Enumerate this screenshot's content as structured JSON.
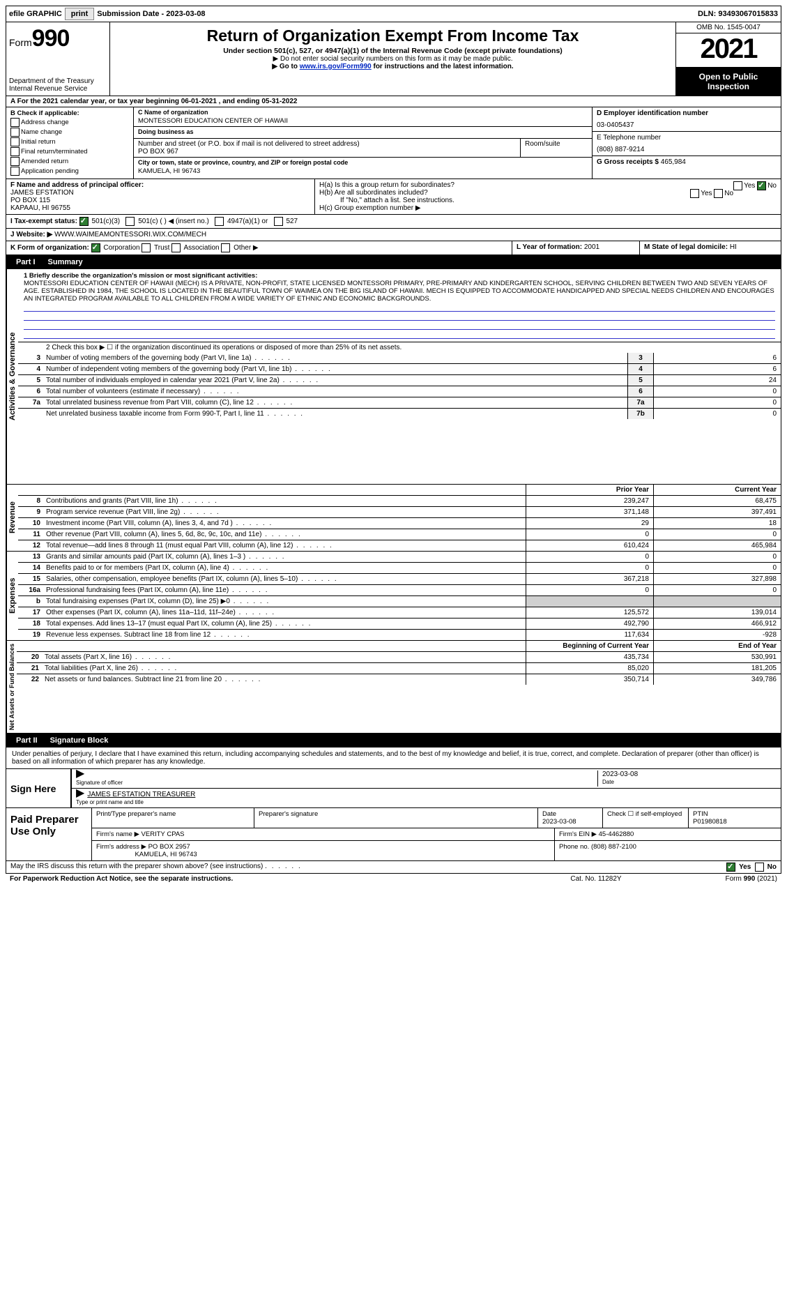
{
  "topbar": {
    "efile": "efile GRAPHIC",
    "print": "print",
    "sub_label": "Submission Date - ",
    "sub_date": "2023-03-08",
    "dln": "DLN: 93493067015833"
  },
  "header": {
    "form_prefix": "Form",
    "form_num": "990",
    "dept": "Department of the Treasury",
    "irs": "Internal Revenue Service",
    "title": "Return of Organization Exempt From Income Tax",
    "sub1": "Under section 501(c), 527, or 4947(a)(1) of the Internal Revenue Code (except private foundations)",
    "sub2a": "▶ Do not enter social security numbers on this form as it may be made public.",
    "sub2b_pre": "▶ Go to ",
    "sub2b_link": "www.irs.gov/Form990",
    "sub2b_post": " for instructions and the latest information.",
    "omb": "OMB No. 1545-0047",
    "year": "2021",
    "open": "Open to Public Inspection"
  },
  "A": {
    "line": "A For the 2021 calendar year, or tax year beginning 06-01-2021   , and ending 05-31-2022"
  },
  "B": {
    "hdr": "B Check if applicable:",
    "opts": [
      "Address change",
      "Name change",
      "Initial return",
      "Final return/terminated",
      "Amended return",
      "Application pending"
    ]
  },
  "C": {
    "name_lab": "C Name of organization",
    "name": "MONTESSORI EDUCATION CENTER OF HAWAII",
    "dba_lab": "Doing business as",
    "dba": "",
    "addr_lab": "Number and street (or P.O. box if mail is not delivered to street address)",
    "room_lab": "Room/suite",
    "addr": "PO BOX 967",
    "city_lab": "City or town, state or province, country, and ZIP or foreign postal code",
    "city": "KAMUELA, HI  96743"
  },
  "D": {
    "lab": "D Employer identification number",
    "val": "03-0405437"
  },
  "E": {
    "lab": "E Telephone number",
    "val": "(808) 887-9214"
  },
  "G": {
    "lab": "G Gross receipts $",
    "val": "465,984"
  },
  "F": {
    "lab": "F  Name and address of principal officer:",
    "name": "JAMES EFSTATION",
    "addr1": "PO BOX 115",
    "addr2": "KAPAAU, HI  96755"
  },
  "H": {
    "a": "H(a)  Is this a group return for subordinates?",
    "b": "H(b)  Are all subordinates included?",
    "b2": "If \"No,\" attach a list. See instructions.",
    "c": "H(c)  Group exemption number ▶",
    "yes": "Yes",
    "no": "No"
  },
  "I": {
    "lab": "I   Tax-exempt status:",
    "o1": "501(c)(3)",
    "o2": "501(c) (  ) ◀ (insert no.)",
    "o3": "4947(a)(1) or",
    "o4": "527"
  },
  "J": {
    "lab": "J   Website: ▶",
    "val": "WWW.WAIMEAMONTESSORI.WIX.COM/MECH"
  },
  "K": {
    "lab": "K Form of organization:",
    "o1": "Corporation",
    "o2": "Trust",
    "o3": "Association",
    "o4": "Other ▶"
  },
  "L": {
    "lab": "L Year of formation:",
    "val": "2001"
  },
  "M": {
    "lab": "M State of legal domicile:",
    "val": "HI"
  },
  "part1": {
    "vlabels": [
      "Activities & Governance",
      "Revenue",
      "Expenses",
      "Net Assets or Fund Balances"
    ],
    "mission_lab": "1   Briefly describe the organization's mission or most significant activities:",
    "mission": "MONTESSORI EDUCATION CENTER OF HAWAII (MECH) IS A PRIVATE, NON-PROFIT, STATE LICENSED MONTESSORI PRIMARY, PRE-PRIMARY AND KINDERGARTEN SCHOOL, SERVING CHILDREN BETWEEN TWO AND SEVEN YEARS OF AGE. ESTABLISHED IN 1984, THE SCHOOL IS LOCATED IN THE BEAUTIFUL TOWN OF WAIMEA ON THE BIG ISLAND OF HAWAII. MECH IS EQUIPPED TO ACCOMMODATE HANDICAPPED AND SPECIAL NEEDS CHILDREN AND ENCOURAGES AN INTEGRATED PROGRAM AVAILABLE TO ALL CHILDREN FROM A WIDE VARIETY OF ETHNIC AND ECONOMIC BACKGROUNDS.",
    "l2": "2   Check this box ▶ ☐ if the organization discontinued its operations or disposed of more than 25% of its net assets.",
    "rows_gov": [
      {
        "n": "3",
        "d": "Number of voting members of the governing body (Part VI, line 1a)",
        "b": "3",
        "v": "6"
      },
      {
        "n": "4",
        "d": "Number of independent voting members of the governing body (Part VI, line 1b)",
        "b": "4",
        "v": "6"
      },
      {
        "n": "5",
        "d": "Total number of individuals employed in calendar year 2021 (Part V, line 2a)",
        "b": "5",
        "v": "24"
      },
      {
        "n": "6",
        "d": "Total number of volunteers (estimate if necessary)",
        "b": "6",
        "v": "0"
      },
      {
        "n": "7a",
        "d": "Total unrelated business revenue from Part VIII, column (C), line 12",
        "b": "7a",
        "v": "0"
      },
      {
        "n": "",
        "d": "Net unrelated business taxable income from Form 990-T, Part I, line 11",
        "b": "7b",
        "v": "0"
      }
    ],
    "col_hdr_prior": "Prior Year",
    "col_hdr_curr": "Current Year",
    "rows_rev": [
      {
        "n": "8",
        "d": "Contributions and grants (Part VIII, line 1h)",
        "p": "239,247",
        "c": "68,475"
      },
      {
        "n": "9",
        "d": "Program service revenue (Part VIII, line 2g)",
        "p": "371,148",
        "c": "397,491"
      },
      {
        "n": "10",
        "d": "Investment income (Part VIII, column (A), lines 3, 4, and 7d )",
        "p": "29",
        "c": "18"
      },
      {
        "n": "11",
        "d": "Other revenue (Part VIII, column (A), lines 5, 6d, 8c, 9c, 10c, and 11e)",
        "p": "0",
        "c": "0"
      },
      {
        "n": "12",
        "d": "Total revenue—add lines 8 through 11 (must equal Part VIII, column (A), line 12)",
        "p": "610,424",
        "c": "465,984"
      }
    ],
    "rows_exp": [
      {
        "n": "13",
        "d": "Grants and similar amounts paid (Part IX, column (A), lines 1–3 )",
        "p": "0",
        "c": "0"
      },
      {
        "n": "14",
        "d": "Benefits paid to or for members (Part IX, column (A), line 4)",
        "p": "0",
        "c": "0"
      },
      {
        "n": "15",
        "d": "Salaries, other compensation, employee benefits (Part IX, column (A), lines 5–10)",
        "p": "367,218",
        "c": "327,898"
      },
      {
        "n": "16a",
        "d": "Professional fundraising fees (Part IX, column (A), line 11e)",
        "p": "0",
        "c": "0"
      },
      {
        "n": "b",
        "d": "Total fundraising expenses (Part IX, column (D), line 25) ▶0",
        "p": "",
        "c": "",
        "shaded": true
      },
      {
        "n": "17",
        "d": "Other expenses (Part IX, column (A), lines 11a–11d, 11f–24e)",
        "p": "125,572",
        "c": "139,014"
      },
      {
        "n": "18",
        "d": "Total expenses. Add lines 13–17 (must equal Part IX, column (A), line 25)",
        "p": "492,790",
        "c": "466,912"
      },
      {
        "n": "19",
        "d": "Revenue less expenses. Subtract line 18 from line 12",
        "p": "117,634",
        "c": "-928"
      }
    ],
    "col_hdr_beg": "Beginning of Current Year",
    "col_hdr_end": "End of Year",
    "rows_net": [
      {
        "n": "20",
        "d": "Total assets (Part X, line 16)",
        "p": "435,734",
        "c": "530,991"
      },
      {
        "n": "21",
        "d": "Total liabilities (Part X, line 26)",
        "p": "85,020",
        "c": "181,205"
      },
      {
        "n": "22",
        "d": "Net assets or fund balances. Subtract line 21 from line 20",
        "p": "350,714",
        "c": "349,786"
      }
    ]
  },
  "part2": {
    "title": "Signature Block",
    "decl": "Under penalties of perjury, I declare that I have examined this return, including accompanying schedules and statements, and to the best of my knowledge and belief, it is true, correct, and complete. Declaration of preparer (other than officer) is based on all information of which preparer has any knowledge.",
    "sign_here": "Sign Here",
    "sig_of_officer": "Signature of officer",
    "sig_date": "2023-03-08",
    "date_lab": "Date",
    "officer_name": "JAMES EFSTATION  TREASURER",
    "officer_type": "Type or print name and title",
    "paid": "Paid Preparer Use Only",
    "prep_name_lab": "Print/Type preparer's name",
    "prep_sig_lab": "Preparer's signature",
    "prep_date": "2023-03-08",
    "check_self": "Check ☐ if self-employed",
    "ptin_lab": "PTIN",
    "ptin": "P01980818",
    "firm_name_lab": "Firm's name    ▶",
    "firm_name": "VERITY CPAS",
    "firm_ein_lab": "Firm's EIN ▶",
    "firm_ein": "45-4462880",
    "firm_addr_lab": "Firm's address ▶",
    "firm_addr1": "PO BOX 2957",
    "firm_addr2": "KAMUELA, HI  96743",
    "phone_lab": "Phone no.",
    "phone": "(808) 887-2100"
  },
  "footer": {
    "discuss": "May the IRS discuss this return with the preparer shown above? (see instructions)",
    "yes": "Yes",
    "no": "No",
    "pwra": "For Paperwork Reduction Act Notice, see the separate instructions.",
    "cat": "Cat. No. 11282Y",
    "form": "Form 990 (2021)"
  }
}
